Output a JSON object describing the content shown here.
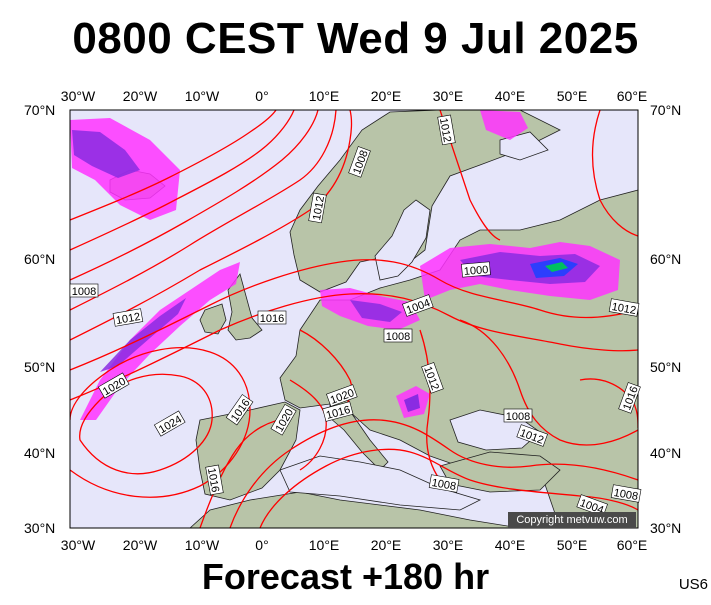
{
  "title": "0800 CEST Wed 9 Jul 2025",
  "subtitle": "Forecast +180 hr",
  "product_code": "US6",
  "copyright": "Copyright metvuw.com",
  "axes": {
    "lon_labels": [
      "30°W",
      "20°W",
      "10°W",
      "0°",
      "10°E",
      "20°E",
      "30°E",
      "40°E",
      "50°E",
      "60°E"
    ],
    "lat_labels": [
      "70°N",
      "60°N",
      "50°N",
      "40°N",
      "30°N"
    ]
  },
  "colors": {
    "isobar": "#ff0000",
    "sea": "#e6e6fa",
    "land": "#b8c4a8",
    "border": "#000000",
    "rain_light": "#ff33ff",
    "rain_moderate": "#8a2be2",
    "rain_heavy": "#2040ff",
    "rain_extreme": "#00c060"
  },
  "isobar_labels": [
    "1012",
    "1008",
    "1012",
    "1000",
    "1004",
    "1008",
    "1012",
    "1020",
    "1016",
    "1024",
    "1020",
    "1020",
    "1016",
    "1016",
    "1012",
    "1008",
    "1012",
    "1008",
    "1008",
    "1004",
    "1016",
    "1008",
    "1012",
    "1016"
  ]
}
